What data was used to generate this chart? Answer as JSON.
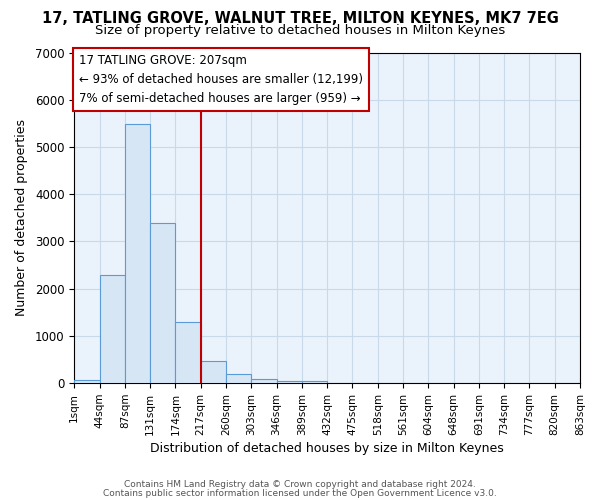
{
  "title": "17, TATLING GROVE, WALNUT TREE, MILTON KEYNES, MK7 7EG",
  "subtitle": "Size of property relative to detached houses in Milton Keynes",
  "xlabel": "Distribution of detached houses by size in Milton Keynes",
  "ylabel": "Number of detached properties",
  "bar_values": [
    75,
    2280,
    5480,
    3400,
    1300,
    460,
    185,
    90,
    55,
    40
  ],
  "bin_edges_labels": [
    "1sqm",
    "44sqm",
    "87sqm",
    "131sqm",
    "174sqm",
    "217sqm",
    "260sqm",
    "303sqm",
    "346sqm",
    "389sqm",
    "432sqm",
    "475sqm",
    "518sqm",
    "561sqm",
    "604sqm",
    "648sqm",
    "691sqm",
    "734sqm",
    "777sqm",
    "820sqm",
    "863sqm"
  ],
  "bar_color": "#d6e6f5",
  "bar_edge_color": "#5b9bd5",
  "vline_color": "#c00000",
  "annotation_line1": "17 TATLING GROVE: 207sqm",
  "annotation_line2": "← 93% of detached houses are smaller (12,199)",
  "annotation_line3": "7% of semi-detached houses are larger (959) →",
  "annotation_box_color": "#c00000",
  "ylim": [
    0,
    7000
  ],
  "yticks": [
    0,
    1000,
    2000,
    3000,
    4000,
    5000,
    6000,
    7000
  ],
  "bg_color": "#ffffff",
  "plot_bg_color": "#eaf2fb",
  "grid_color": "#c8daea",
  "footer1": "Contains HM Land Registry data © Crown copyright and database right 2024.",
  "footer2": "Contains public sector information licensed under the Open Government Licence v3.0.",
  "n_total_bins": 20,
  "vline_bin": 5
}
